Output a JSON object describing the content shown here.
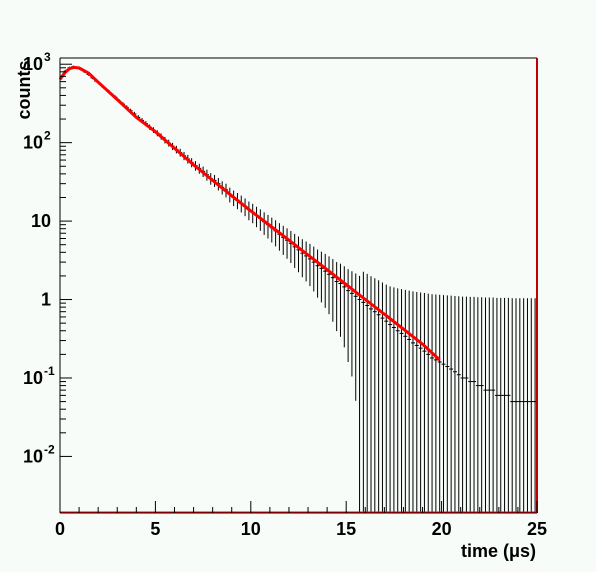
{
  "chart_data": {
    "type": "scatter",
    "xlabel": "time (μs)",
    "ylabel": "counts",
    "xlim": [
      0,
      25
    ],
    "ylim": [
      0.0019,
      1200
    ],
    "yscale": "log",
    "x_ticks": [
      "0",
      "5",
      "10",
      "15",
      "20",
      "25"
    ],
    "y_ticks": [
      {
        "value": 0.01,
        "base": "10",
        "exp": "-2"
      },
      {
        "value": 0.1,
        "base": "10",
        "exp": "-1"
      },
      {
        "value": 1,
        "base": "1",
        "exp": ""
      },
      {
        "value": 10,
        "base": "10",
        "exp": ""
      },
      {
        "value": 100,
        "base": "10",
        "exp": "2"
      },
      {
        "value": 1000,
        "base": "10",
        "exp": "3"
      }
    ],
    "grid": false,
    "colors": {
      "data": "#000000",
      "fit": "#ff0000",
      "frame": "#000000",
      "background": "#f7fcf9"
    },
    "data_series": {
      "points": [
        [
          0.1,
          700
        ],
        [
          0.3,
          820
        ],
        [
          0.5,
          900
        ],
        [
          0.7,
          930
        ],
        [
          0.9,
          905
        ],
        [
          1.1,
          860
        ],
        [
          1.3,
          800
        ],
        [
          1.5,
          740
        ],
        [
          1.7,
          670
        ],
        [
          1.9,
          610
        ],
        [
          2.1,
          560
        ],
        [
          2.3,
          505
        ],
        [
          2.5,
          460
        ],
        [
          2.7,
          415
        ],
        [
          2.9,
          380
        ],
        [
          3.1,
          340
        ],
        [
          3.3,
          310
        ],
        [
          3.5,
          282
        ],
        [
          3.7,
          255
        ],
        [
          3.9,
          232
        ],
        [
          4.1,
          210
        ],
        [
          4.3,
          192
        ],
        [
          4.5,
          175
        ],
        [
          4.7,
          158
        ],
        [
          4.9,
          145
        ],
        [
          5.1,
          132
        ],
        [
          5.3,
          120
        ],
        [
          5.5,
          108
        ],
        [
          5.7,
          99
        ],
        [
          5.9,
          90
        ],
        [
          6.1,
          82
        ],
        [
          6.3,
          75
        ],
        [
          6.5,
          68
        ],
        [
          6.7,
          62
        ],
        [
          6.9,
          56
        ],
        [
          7.1,
          51
        ],
        [
          7.3,
          47
        ],
        [
          7.5,
          43
        ],
        [
          7.7,
          39
        ],
        [
          7.9,
          35
        ],
        [
          8.1,
          33
        ],
        [
          8.3,
          30
        ],
        [
          8.5,
          27
        ],
        [
          8.7,
          25
        ],
        [
          8.9,
          22
        ],
        [
          9.1,
          20
        ],
        [
          9.3,
          18.5
        ],
        [
          9.5,
          17
        ],
        [
          9.7,
          15.5
        ],
        [
          9.9,
          14
        ],
        [
          10.1,
          13
        ],
        [
          10.3,
          11.8
        ],
        [
          10.5,
          10.8
        ],
        [
          10.7,
          9.8
        ],
        [
          10.9,
          9
        ],
        [
          11.1,
          8.2
        ],
        [
          11.3,
          7.5
        ],
        [
          11.5,
          6.8
        ],
        [
          11.7,
          6.2
        ],
        [
          11.9,
          5.7
        ],
        [
          12.1,
          5.2
        ],
        [
          12.3,
          4.7
        ],
        [
          12.5,
          4.3
        ],
        [
          12.7,
          3.9
        ],
        [
          12.9,
          3.6
        ],
        [
          13.1,
          3.3
        ],
        [
          13.3,
          3
        ],
        [
          13.5,
          2.7
        ],
        [
          13.7,
          2.5
        ],
        [
          13.9,
          2.3
        ],
        [
          14.1,
          2.1
        ],
        [
          14.3,
          1.9
        ],
        [
          14.5,
          1.7
        ],
        [
          14.7,
          1.6
        ],
        [
          14.9,
          1.45
        ],
        [
          15.1,
          1.3
        ],
        [
          15.3,
          1.2
        ],
        [
          15.5,
          1.1
        ],
        [
          15.7,
          1
        ],
        [
          15.9,
          0.92
        ],
        [
          16.1,
          0.84
        ],
        [
          16.3,
          0.76
        ],
        [
          16.5,
          0.7
        ],
        [
          16.7,
          0.64
        ],
        [
          16.9,
          0.58
        ],
        [
          17.1,
          0.53
        ],
        [
          17.3,
          0.48
        ],
        [
          17.5,
          0.44
        ],
        [
          17.7,
          0.4
        ],
        [
          17.9,
          0.37
        ],
        [
          18.1,
          0.34
        ],
        [
          18.3,
          0.31
        ],
        [
          18.5,
          0.28
        ],
        [
          18.7,
          0.26
        ],
        [
          18.9,
          0.24
        ],
        [
          19.1,
          0.22
        ],
        [
          19.3,
          0.2
        ],
        [
          19.5,
          0.18
        ],
        [
          19.7,
          0.17
        ],
        [
          19.9,
          0.16
        ],
        [
          20.1,
          0.15
        ],
        [
          20.3,
          0.14
        ],
        [
          20.5,
          0.13
        ],
        [
          20.7,
          0.12
        ],
        [
          20.9,
          0.11
        ],
        [
          21.1,
          0.1
        ],
        [
          21.3,
          0.1
        ],
        [
          21.5,
          0.09
        ],
        [
          21.7,
          0.09
        ],
        [
          21.9,
          0.08
        ],
        [
          22.1,
          0.08
        ],
        [
          22.3,
          0.07
        ],
        [
          22.5,
          0.07
        ],
        [
          22.7,
          0.07
        ],
        [
          22.9,
          0.06
        ],
        [
          23.1,
          0.06
        ],
        [
          23.3,
          0.06
        ],
        [
          23.5,
          0.06
        ],
        [
          23.7,
          0.05
        ],
        [
          23.9,
          0.05
        ],
        [
          24.1,
          0.05
        ],
        [
          24.3,
          0.05
        ],
        [
          24.5,
          0.05
        ],
        [
          24.7,
          0.05
        ],
        [
          24.9,
          0.05
        ]
      ]
    },
    "fit_curve": {
      "x": [
        0.0,
        0.25,
        0.5,
        0.75,
        1.0,
        1.5,
        2.0,
        3.0,
        4.0,
        5.0,
        6.0,
        7.0,
        8.0,
        9.0,
        10.0,
        11.0,
        12.0,
        13.0,
        14.0,
        15.0,
        16.0,
        17.0,
        18.0,
        19.0,
        19.9
      ],
      "y": [
        640,
        780,
        880,
        910,
        895,
        770,
        590,
        355,
        210,
        138,
        85,
        52,
        33,
        21,
        13.5,
        8.8,
        5.7,
        3.7,
        2.4,
        1.55,
        1.0,
        0.65,
        0.42,
        0.27,
        0.17
      ]
    }
  }
}
